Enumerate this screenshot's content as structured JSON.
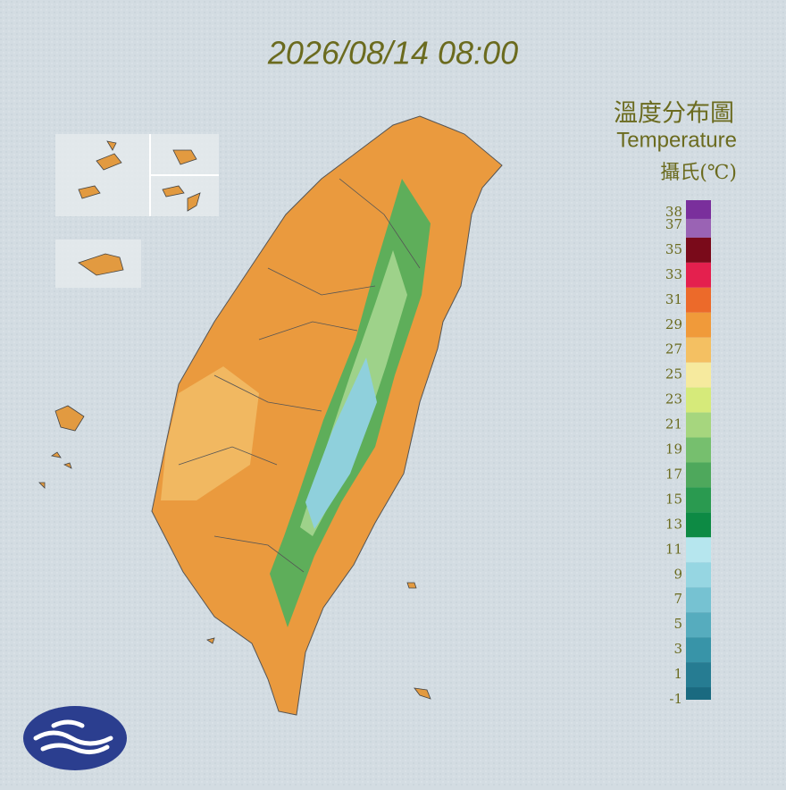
{
  "header": {
    "timestamp": "2026/08/14 08:00"
  },
  "legend": {
    "title": "溫度分布圖",
    "subtitle": "Temperature",
    "unit": "攝氏(℃)",
    "ticks": [
      38,
      37,
      35,
      33,
      31,
      29,
      27,
      25,
      23,
      21,
      19,
      17,
      15,
      13,
      11,
      9,
      7,
      5,
      3,
      1,
      -1
    ],
    "colors": [
      "#7a2f9c",
      "#9a63b4",
      "#7a0a1a",
      "#e4204e",
      "#ec6a2a",
      "#f09a3a",
      "#f4c062",
      "#f6ea9e",
      "#d6ea7a",
      "#a6d67e",
      "#76bf6e",
      "#4ea85c",
      "#2a9a50",
      "#0d8a44",
      "#b6e6ee",
      "#96d6e2",
      "#76c2d2",
      "#56acbe",
      "#3894a8",
      "#267c92",
      "#1a6a80"
    ],
    "range": [
      -1,
      39
    ]
  }
}
